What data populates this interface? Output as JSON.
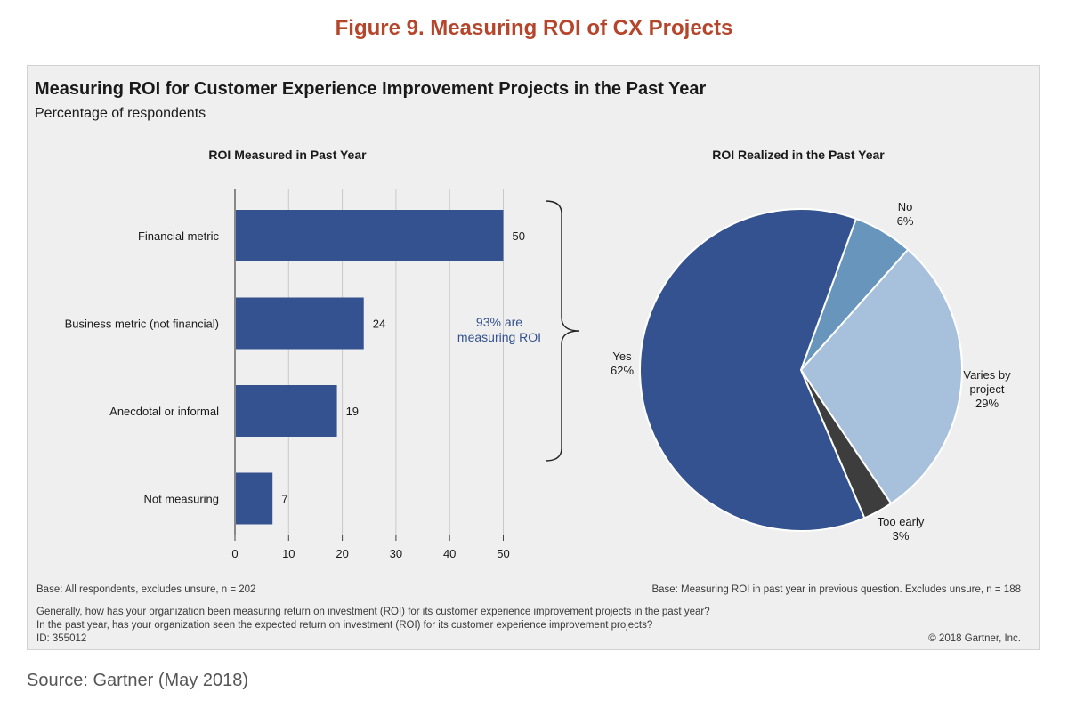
{
  "figure_title": "Figure 9. Measuring ROI of CX Projects",
  "colors": {
    "figure_title": "#b5452b",
    "bar": "#33528f",
    "annotation": "#33528f",
    "pie_yes": "#33528f",
    "pie_no": "#6795bb",
    "pie_varies": "#a7c0dc",
    "pie_too_early": "#3d3d3d"
  },
  "chart_data": [
    {
      "type": "bar",
      "orientation": "horizontal",
      "title": "Measuring ROI for Customer Experience Improvement Projects in the Past Year",
      "subtitle": "Percentage of respondents",
      "panel_title": "ROI Measured in Past Year",
      "categories": [
        "Financial metric",
        "Business metric (not financial)",
        "Anecdotal or informal",
        "Not measuring"
      ],
      "values": [
        50,
        24,
        19,
        7
      ],
      "xlim": [
        0,
        50
      ],
      "xticks": [
        "0",
        "10",
        "20",
        "30",
        "40",
        "50"
      ],
      "grid": true,
      "annotation": [
        "93% are",
        "measuring ROI"
      ]
    },
    {
      "type": "pie",
      "panel_title": "ROI Realized in the Past Year",
      "slices": [
        {
          "label": "No",
          "value": 6,
          "value_label": "6%"
        },
        {
          "label": "Varies by project",
          "value": 29,
          "value_label": "29%"
        },
        {
          "label": "Too early",
          "value": 3,
          "value_label": "3%"
        },
        {
          "label": "Yes",
          "value": 62,
          "value_label": "62%"
        }
      ]
    }
  ],
  "footnotes": {
    "base_left": "Base: All respondents, excludes unsure, n = 202",
    "base_right": "Base: Measuring ROI in past year in previous question. Excludes unsure, n = 188",
    "question_1": "Generally, how has your organization been measuring return on investment (ROI) for its customer experience improvement projects in the past year?",
    "question_2": "In the past year, has your organization seen the expected return on investment (ROI) for its customer experience improvement projects?",
    "id": "ID: 355012",
    "copyright": "© 2018 Gartner, Inc."
  },
  "source": "Source: Gartner (May 2018)"
}
